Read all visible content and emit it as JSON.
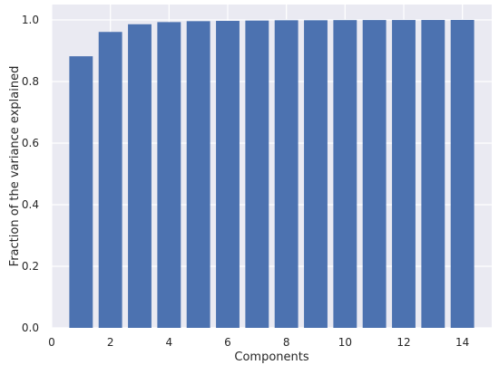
{
  "chart_data": {
    "type": "bar",
    "title": "",
    "xlabel": "Components",
    "ylabel": "Fraction of the variance explained",
    "x": [
      1,
      2,
      3,
      4,
      5,
      6,
      7,
      8,
      9,
      10,
      11,
      12,
      13,
      14
    ],
    "values": [
      0.882,
      0.961,
      0.986,
      0.993,
      0.996,
      0.997,
      0.998,
      0.999,
      0.999,
      0.9995,
      0.9997,
      0.9998,
      0.9999,
      1.0
    ],
    "xlim": [
      0,
      15
    ],
    "ylim": [
      0,
      1.05
    ],
    "xticks": [
      0,
      2,
      4,
      6,
      8,
      10,
      12,
      14
    ],
    "yticks": [
      0.0,
      0.2,
      0.4,
      0.6,
      0.8,
      1.0
    ],
    "xtick_labels": [
      "0",
      "2",
      "4",
      "6",
      "8",
      "10",
      "12",
      "14"
    ],
    "ytick_labels": [
      "0.0",
      "0.2",
      "0.4",
      "0.6",
      "0.8",
      "1.0"
    ],
    "grid": true,
    "bar_color": "#4c72b0",
    "plot_background": "#eaeaf2",
    "grid_color": "#ffffff"
  }
}
